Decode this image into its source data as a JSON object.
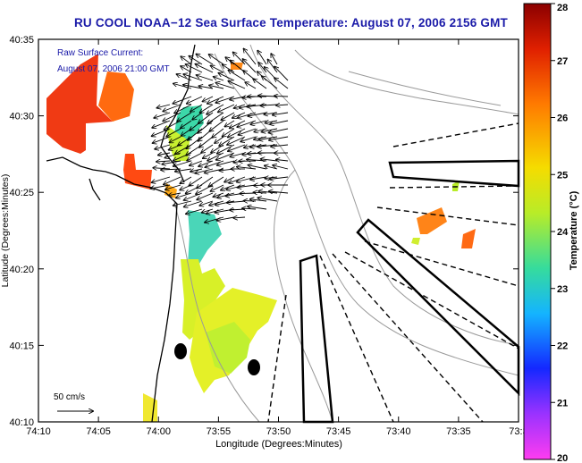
{
  "title": "RU COOL  NOAA−12  Sea Surface Temperature:  August 07, 2006 2156 GMT",
  "annotations": {
    "current_label_line1": "Raw Surface Current:",
    "current_label_line2": "August 07, 2006 21:00 GMT",
    "scale_label": "50 cm/s"
  },
  "axes": {
    "xlabel": "Longitude (Degrees:Minutes)",
    "ylabel": "Latitude (Degrees:Minutes)",
    "x_ticks": [
      "74:10",
      "74:05",
      "74:00",
      "73:55",
      "73:50",
      "73:45",
      "73:40",
      "73:35",
      "73:3"
    ],
    "y_ticks": [
      "40:35",
      "40:30",
      "40:25",
      "40:20",
      "40:15",
      "40:10"
    ]
  },
  "colorbar": {
    "label": "Temperature (°C)",
    "ticks": [
      "28",
      "27",
      "26",
      "25",
      "24",
      "23",
      "22",
      "21",
      "20"
    ],
    "min": 20,
    "max": 28
  },
  "colors": {
    "title": "#1a1aa8",
    "annotation": "#1a1aa8"
  }
}
